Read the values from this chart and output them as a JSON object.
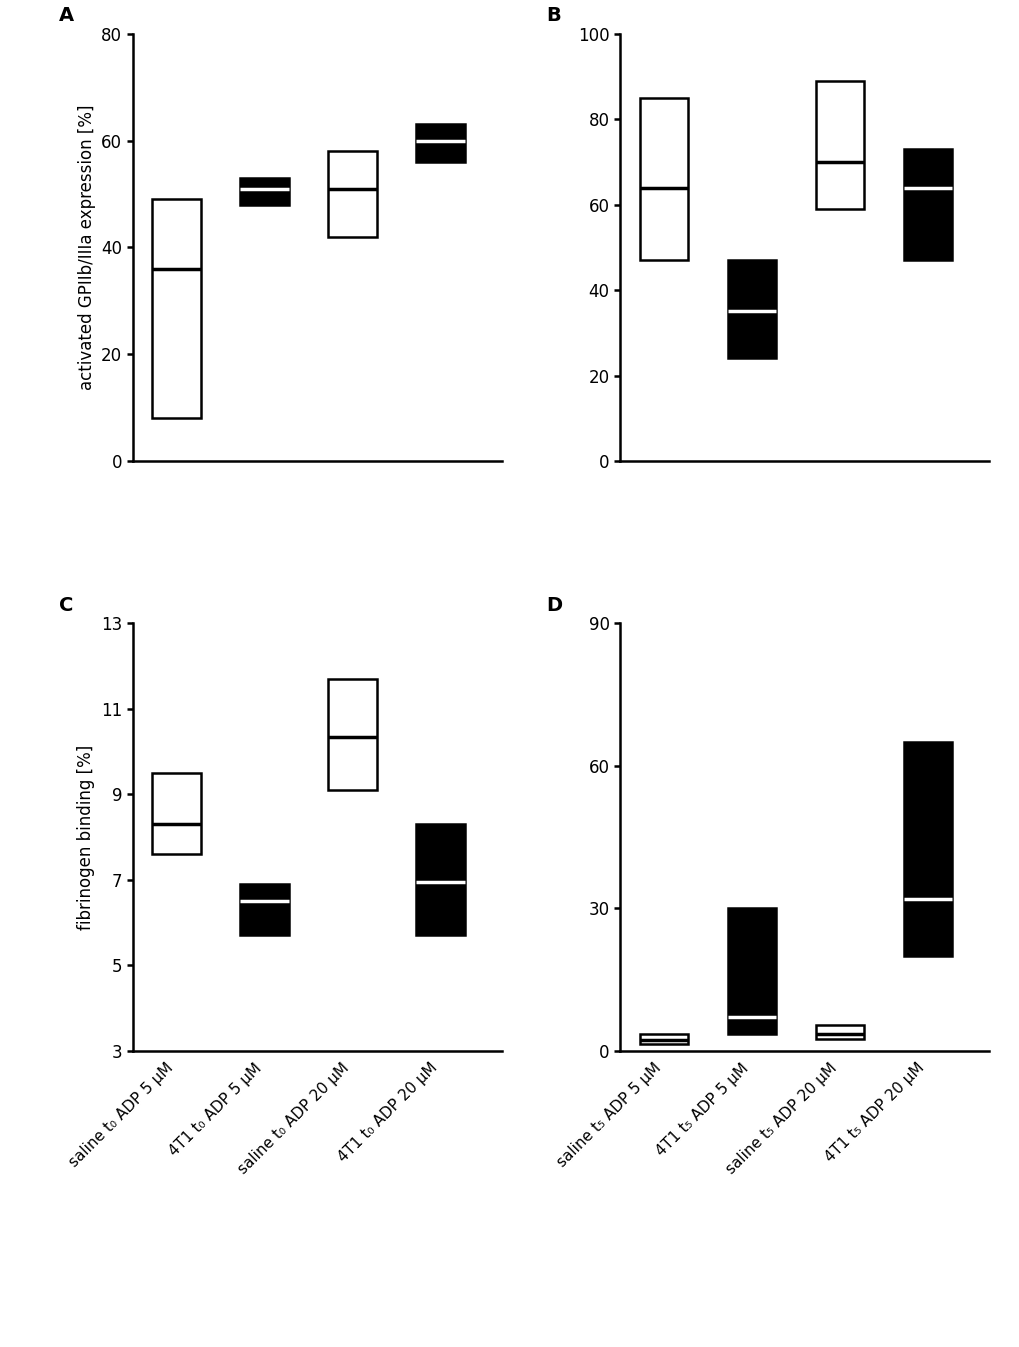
{
  "panel_A": {
    "title": "A",
    "ylabel": "activated GPIIb/IIIa expression [%]",
    "ylim": [
      0,
      80
    ],
    "yticks": [
      0,
      20,
      40,
      60,
      80
    ],
    "boxes": [
      {
        "q1": 8,
        "median": 36,
        "q3": 49,
        "color": "white",
        "edgecolor": "black"
      },
      {
        "q1": 48,
        "median": 51,
        "q3": 53,
        "color": "black",
        "edgecolor": "black"
      },
      {
        "q1": 42,
        "median": 51,
        "q3": 58,
        "color": "white",
        "edgecolor": "black"
      },
      {
        "q1": 56,
        "median": 60,
        "q3": 63,
        "color": "black",
        "edgecolor": "black"
      }
    ]
  },
  "panel_B": {
    "title": "B",
    "ylabel": "",
    "ylim": [
      0,
      100
    ],
    "yticks": [
      0,
      20,
      40,
      60,
      80,
      100
    ],
    "boxes": [
      {
        "q1": 47,
        "median": 64,
        "q3": 85,
        "color": "white",
        "edgecolor": "black"
      },
      {
        "q1": 24,
        "median": 35,
        "q3": 47,
        "color": "black",
        "edgecolor": "black"
      },
      {
        "q1": 59,
        "median": 70,
        "q3": 89,
        "color": "white",
        "edgecolor": "black"
      },
      {
        "q1": 47,
        "median": 64,
        "q3": 73,
        "color": "black",
        "edgecolor": "black"
      }
    ]
  },
  "panel_C": {
    "title": "C",
    "ylabel": "fibrinogen binding [%]",
    "ylim": [
      3,
      13
    ],
    "yticks": [
      3,
      5,
      7,
      9,
      11,
      13
    ],
    "boxes": [
      {
        "q1": 7.6,
        "median": 8.3,
        "q3": 9.5,
        "color": "white",
        "edgecolor": "black"
      },
      {
        "q1": 5.7,
        "median": 6.5,
        "q3": 6.9,
        "color": "black",
        "edgecolor": "black"
      },
      {
        "q1": 9.1,
        "median": 10.35,
        "q3": 11.7,
        "color": "white",
        "edgecolor": "black"
      },
      {
        "q1": 5.7,
        "median": 6.95,
        "q3": 8.3,
        "color": "black",
        "edgecolor": "black"
      }
    ],
    "xlabels": [
      "saline t₀ ADP 5 μM",
      "4T1 t₀ ADP 5 μM",
      "saline t₀ ADP 20 μM",
      "4T1 t₀ ADP 20 μM"
    ]
  },
  "panel_D": {
    "title": "D",
    "ylabel": "",
    "ylim": [
      0,
      90
    ],
    "yticks": [
      0,
      30,
      60,
      90
    ],
    "boxes": [
      {
        "q1": 1.5,
        "median": 2.2,
        "q3": 3.5,
        "color": "white",
        "edgecolor": "black"
      },
      {
        "q1": 3.5,
        "median": 7.0,
        "q3": 30.0,
        "color": "black",
        "edgecolor": "black"
      },
      {
        "q1": 2.5,
        "median": 3.5,
        "q3": 5.5,
        "color": "white",
        "edgecolor": "black"
      },
      {
        "q1": 20,
        "median": 32,
        "q3": 65.0,
        "color": "black",
        "edgecolor": "black"
      }
    ],
    "xlabels": [
      "saline t₅ ADP 5 μM",
      "4T1 t₅ ADP 5 μM",
      "saline t₅ ADP 20 μM",
      "4T1 t₅ ADP 20 μM"
    ]
  },
  "box_width": 0.55,
  "lw": 1.8,
  "median_lw": 2.5,
  "fontsize_ylabel": 12,
  "fontsize_tick": 12,
  "fontsize_title": 14,
  "fontsize_xticklabel": 11
}
